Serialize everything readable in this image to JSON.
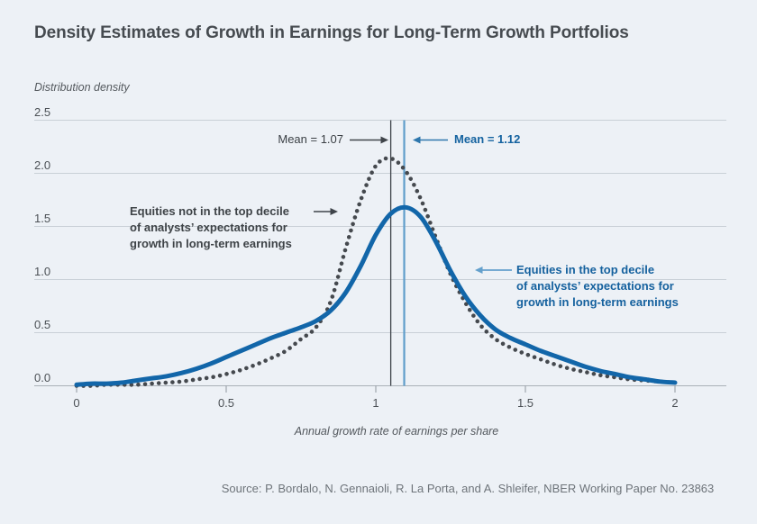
{
  "source": "Source: P. Bordalo, N. Gennaioli, R. La Porta, and A. Shleifer, NBER Working Paper No. 23863",
  "annotations": {
    "left": "Equities not in the top decile\nof analysts’ expectations for\ngrowth in long-term earnings",
    "right": "Equities in the top decile\nof analysts’ expectations for\ngrowth in long-term earnings"
  },
  "colors": {
    "background": "#edf1f6",
    "grid": "#c9d0d7",
    "axis": "#aab1b8",
    "tick": "#8f969d",
    "dotted_curve": "#45494e",
    "solid_curve": "#1266a9",
    "mean_line_dark": "#3f444a",
    "mean_line_blue": "#5f9dcb",
    "arrow_dark": "#3f444a",
    "arrow_blue_medium": "#2e77ad",
    "arrow_blue_light": "#64a0cc"
  },
  "chart_data": {
    "type": "line",
    "title": "Density Estimates of Growth in Earnings for Long-Term Growth Portfolios",
    "xlabel": "Annual growth rate of earnings per share",
    "ylabel": "Distribution density",
    "xlim": [
      0,
      2
    ],
    "ylim": [
      0,
      2.5
    ],
    "grid": true,
    "xtick_values": [
      0,
      0.5,
      1,
      1.5,
      2
    ],
    "xtick_labels": [
      "0",
      "0.5",
      "1",
      "1.5",
      "2"
    ],
    "ytick_values": [
      0,
      0.5,
      1,
      1.5,
      2,
      2.5
    ],
    "ytick_labels": [
      "0.0",
      "0.5",
      "1.0",
      "1.5",
      "2.0",
      "2.5"
    ],
    "x": [
      0,
      0.05,
      0.1,
      0.15,
      0.2,
      0.25,
      0.3,
      0.35,
      0.4,
      0.45,
      0.5,
      0.55,
      0.6,
      0.65,
      0.7,
      0.75,
      0.8,
      0.85,
      0.9,
      0.95,
      1.0,
      1.05,
      1.1,
      1.15,
      1.2,
      1.25,
      1.3,
      1.35,
      1.4,
      1.45,
      1.5,
      1.55,
      1.6,
      1.65,
      1.7,
      1.75,
      1.8,
      1.85,
      1.9,
      1.95,
      2.0
    ],
    "series": [
      {
        "name": "Equities not in the top decile of analysts’ expectations for growth in long-term earnings",
        "line_style": "dotted",
        "color": "#45494e",
        "mean": 1.07,
        "mean_label": "Mean = 1.07",
        "values": [
          0.0,
          0.0,
          0.01,
          0.01,
          0.01,
          0.02,
          0.03,
          0.04,
          0.06,
          0.08,
          0.11,
          0.15,
          0.2,
          0.26,
          0.33,
          0.44,
          0.55,
          0.8,
          1.3,
          1.75,
          2.07,
          2.14,
          2.02,
          1.76,
          1.4,
          1.05,
          0.78,
          0.57,
          0.44,
          0.36,
          0.3,
          0.25,
          0.2,
          0.16,
          0.13,
          0.1,
          0.08,
          0.06,
          0.05,
          0.04,
          0.03
        ]
      },
      {
        "name": "Equities in the top decile of analysts’ expectations for growth in long-term earnings",
        "line_style": "solid",
        "color": "#1266a9",
        "mean": 1.12,
        "mean_label": "Mean = 1.12",
        "values": [
          0.01,
          0.02,
          0.02,
          0.03,
          0.05,
          0.07,
          0.09,
          0.12,
          0.16,
          0.21,
          0.27,
          0.33,
          0.39,
          0.45,
          0.5,
          0.55,
          0.61,
          0.71,
          0.88,
          1.13,
          1.42,
          1.62,
          1.68,
          1.59,
          1.36,
          1.08,
          0.84,
          0.66,
          0.53,
          0.45,
          0.39,
          0.33,
          0.28,
          0.23,
          0.18,
          0.14,
          0.11,
          0.08,
          0.06,
          0.04,
          0.03
        ]
      }
    ],
    "mean_lines": [
      {
        "x": 1.05,
        "color": "#3f444a",
        "width": 1.3
      },
      {
        "x": 1.095,
        "color": "#5f9dcb",
        "width": 2.2
      }
    ]
  }
}
